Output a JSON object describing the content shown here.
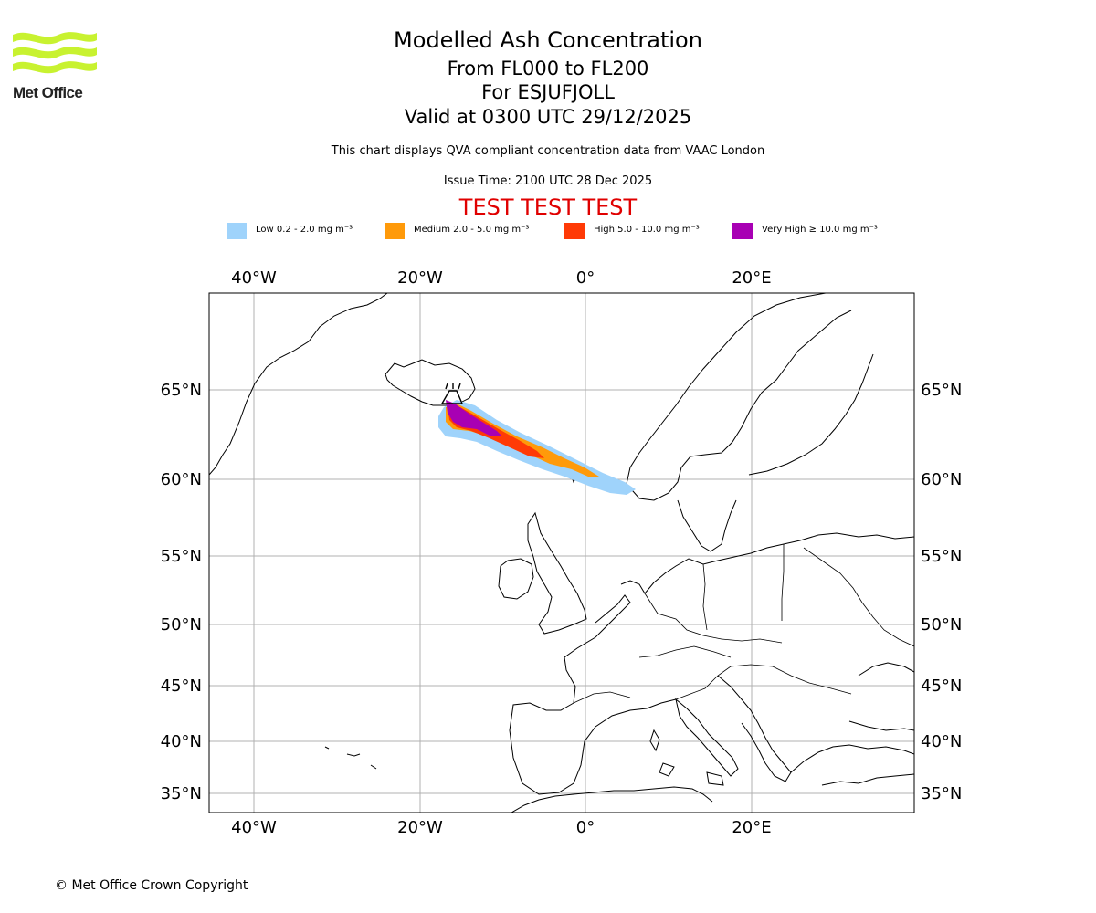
{
  "logo": {
    "text": "Met Office",
    "color": "#c8f230"
  },
  "title": {
    "line1": "Modelled Ash Concentration",
    "line2": "From FL000 to FL200",
    "line3": "For ESJUFJOLL",
    "line4": "Valid at 0300 UTC 29/12/2025"
  },
  "subtitle": "This chart displays QVA compliant concentration data from VAAC London",
  "issue_time": "Issue Time: 2100 UTC 28 Dec 2025",
  "test_banner": "TEST TEST TEST",
  "legend": [
    {
      "label": "Low 0.2 - 2.0 mg m⁻³",
      "color": "#9fd3fb"
    },
    {
      "label": "Medium 2.0 - 5.0 mg m⁻³",
      "color": "#ff9a0a"
    },
    {
      "label": "High 5.0 - 10.0 mg m⁻³",
      "color": "#ff3a06"
    },
    {
      "label": "Very High ≥ 10.0 mg m⁻³",
      "color": "#a800b4"
    }
  ],
  "axes": {
    "lon_labels": [
      "40°W",
      "20°W",
      "0°",
      "20°E"
    ],
    "lat_labels": [
      "65°N",
      "60°N",
      "55°N",
      "50°N",
      "45°N",
      "40°N",
      "35°N"
    ]
  },
  "copyright": "© Met Office Crown Copyright"
}
